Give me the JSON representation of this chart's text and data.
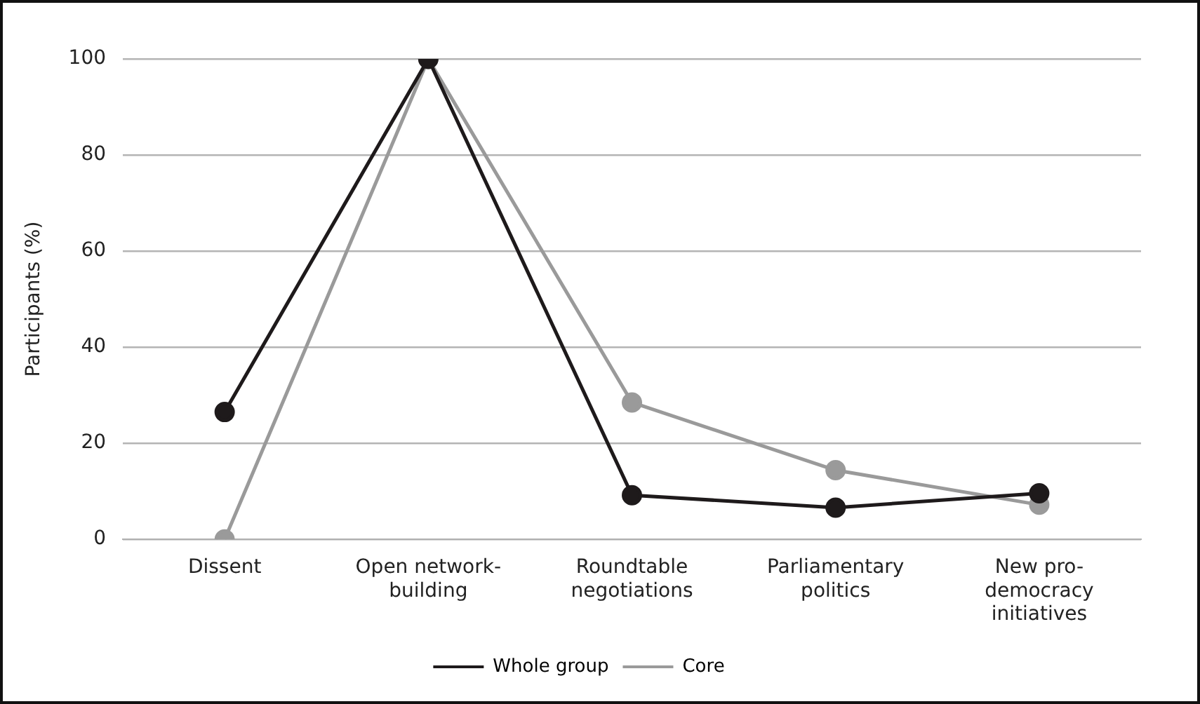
{
  "chart_data": {
    "type": "line",
    "ylabel": "Participants (%)",
    "categories": [
      "Dissent",
      "Open network-building",
      "Roundtable negotiations",
      "Parliamentary politics",
      "New pro-democracy initiatives"
    ],
    "series": [
      {
        "name": "Whole group",
        "color": "#1e1a1b",
        "values": [
          26.5,
          100,
          9.2,
          6.6,
          9.6
        ]
      },
      {
        "name": "Core",
        "color": "#9a9a9a",
        "values": [
          0,
          100,
          28.5,
          14.4,
          7.2
        ]
      }
    ],
    "ylim": [
      0,
      100
    ],
    "yticks": [
      0,
      20,
      40,
      60,
      80,
      100
    ],
    "grid": "y",
    "legend": "bottom",
    "marker": "circle",
    "line_style": "solid"
  }
}
